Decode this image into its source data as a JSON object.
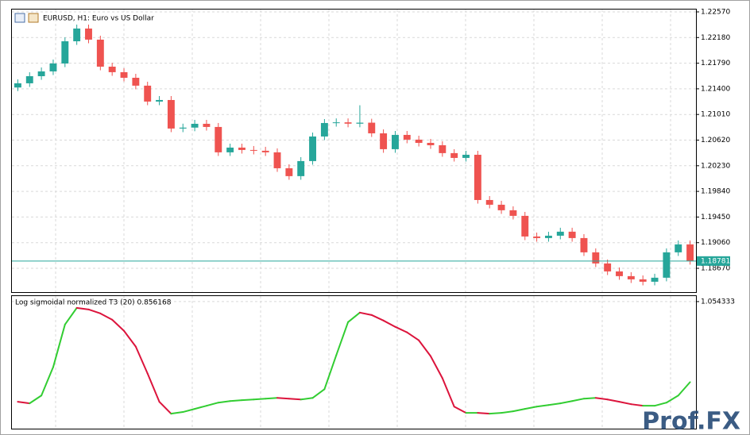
{
  "chart_data": [
    {
      "type": "candlestick",
      "title": "EURUSD, H1:  Euro vs US Dollar",
      "open": [
        1.2142,
        1.21484,
        1.21592,
        1.21665,
        1.21785,
        1.22123,
        1.22317,
        1.22148,
        1.21737,
        1.21653,
        1.21568,
        1.21448,
        1.21206,
        1.2123,
        1.20796,
        1.2081,
        1.20868,
        1.2082,
        1.20434,
        1.20506,
        1.2047,
        1.20458,
        1.20434,
        1.20192,
        1.20072,
        1.20301,
        1.20675,
        1.2088,
        1.2089,
        1.2087,
        1.20885,
        1.20723,
        1.20482,
        1.20699,
        1.20627,
        1.20578,
        1.20542,
        1.20422,
        1.20349,
        1.20397,
        1.19709,
        1.19637,
        1.19553,
        1.19468,
        1.19154,
        1.1913,
        1.19166,
        1.19227,
        1.1913,
        1.18913,
        1.18744,
        1.18623,
        1.18551,
        1.18502,
        1.18466,
        1.18527,
        1.18913,
        1.19034
      ],
      "high": [
        1.21544,
        1.21652,
        1.21725,
        1.21845,
        1.22183,
        1.22377,
        1.22377,
        1.22208,
        1.21797,
        1.21713,
        1.21628,
        1.21508,
        1.2129,
        1.2129,
        1.2087,
        1.20928,
        1.20928,
        1.2088,
        1.20566,
        1.20566,
        1.2053,
        1.20518,
        1.20494,
        1.20252,
        1.20361,
        1.20735,
        1.2094,
        1.2095,
        1.2095,
        1.2115,
        1.20945,
        1.20783,
        1.20759,
        1.20759,
        1.20687,
        1.20638,
        1.20602,
        1.20482,
        1.20457,
        1.20457,
        1.19769,
        1.19697,
        1.19613,
        1.19528,
        1.19214,
        1.19226,
        1.19287,
        1.19287,
        1.1919,
        1.18973,
        1.18804,
        1.18683,
        1.18611,
        1.18562,
        1.18587,
        1.18973,
        1.19094,
        1.19094
      ],
      "low": [
        1.21365,
        1.21429,
        1.21537,
        1.2161,
        1.2173,
        1.22068,
        1.22093,
        1.21682,
        1.21598,
        1.21513,
        1.21393,
        1.21151,
        1.21151,
        1.20741,
        1.20741,
        1.20755,
        1.20765,
        1.20379,
        1.20379,
        1.20415,
        1.20403,
        1.20379,
        1.20137,
        1.20017,
        1.20017,
        1.20246,
        1.2062,
        1.20825,
        1.20815,
        1.20815,
        1.20668,
        1.20427,
        1.20427,
        1.20572,
        1.20523,
        1.20487,
        1.20367,
        1.20294,
        1.20294,
        1.19654,
        1.19582,
        1.19498,
        1.19413,
        1.19099,
        1.19075,
        1.19075,
        1.19111,
        1.19075,
        1.18858,
        1.18689,
        1.18568,
        1.18496,
        1.18447,
        1.18411,
        1.18411,
        1.18472,
        1.18858,
        1.18726
      ],
      "close": [
        1.21484,
        1.21592,
        1.21665,
        1.21785,
        1.22123,
        1.22317,
        1.22148,
        1.21737,
        1.21653,
        1.21568,
        1.21448,
        1.21206,
        1.2123,
        1.20796,
        1.2081,
        1.20868,
        1.2082,
        1.20434,
        1.20506,
        1.2047,
        1.20458,
        1.20434,
        1.20192,
        1.20072,
        1.20301,
        1.20675,
        1.2088,
        1.2089,
        1.2087,
        1.20885,
        1.20723,
        1.20482,
        1.20699,
        1.20627,
        1.20578,
        1.20542,
        1.20422,
        1.20349,
        1.20397,
        1.19709,
        1.19637,
        1.19553,
        1.19468,
        1.19154,
        1.1913,
        1.19166,
        1.19227,
        1.1913,
        1.18913,
        1.18744,
        1.18623,
        1.18551,
        1.18502,
        1.18466,
        1.18527,
        1.18913,
        1.19034,
        1.18781
      ],
      "bull_color": "#26a69a",
      "bear_color": "#ef5350",
      "ylim": [
        1.18308,
        1.22606
      ],
      "yticks": [
        {
          "value": 1.2257,
          "label": "1.22570"
        },
        {
          "value": 1.2218,
          "label": "1.22180"
        },
        {
          "value": 1.2179,
          "label": "1.21790"
        },
        {
          "value": 1.214,
          "label": "1.21400"
        },
        {
          "value": 1.2101,
          "label": "1.21010"
        },
        {
          "value": 1.2062,
          "label": "1.20620"
        },
        {
          "value": 1.2023,
          "label": "1.20230"
        },
        {
          "value": 1.1984,
          "label": "1.19840"
        },
        {
          "value": 1.1945,
          "label": "1.19450"
        },
        {
          "value": 1.1906,
          "label": "1.19060"
        },
        {
          "value": 1.1867,
          "label": "1.18670"
        }
      ],
      "grid": true,
      "last_price": {
        "value": 1.18781,
        "label": "1.18781"
      },
      "last_price_color": "#26a69a"
    },
    {
      "type": "line",
      "title": "Log sigmoidal normalized T3 (20) 0.856168",
      "values": [
        0.223,
        0.21,
        0.275,
        0.511,
        0.864,
        1.002,
        0.989,
        0.956,
        0.904,
        0.812,
        0.681,
        0.458,
        0.223,
        0.124,
        0.138,
        0.164,
        0.19,
        0.216,
        0.229,
        0.236,
        0.242,
        0.249,
        0.255,
        0.249,
        0.242,
        0.255,
        0.327,
        0.609,
        0.884,
        0.963,
        0.943,
        0.897,
        0.845,
        0.799,
        0.733,
        0.602,
        0.419,
        0.183,
        0.131,
        0.131,
        0.124,
        0.131,
        0.144,
        0.164,
        0.183,
        0.196,
        0.21,
        0.229,
        0.249,
        0.255,
        0.242,
        0.223,
        0.203,
        0.19,
        0.19,
        0.216,
        0.275,
        0.386
      ],
      "rise_color": "#32cd32",
      "fall_color": "#dc143c",
      "ylim": [
        0,
        1.1
      ],
      "yticks": [
        {
          "value": 1.054333,
          "label": "1.054333"
        }
      ],
      "grid": true
    }
  ],
  "watermark": "Prof.FX"
}
